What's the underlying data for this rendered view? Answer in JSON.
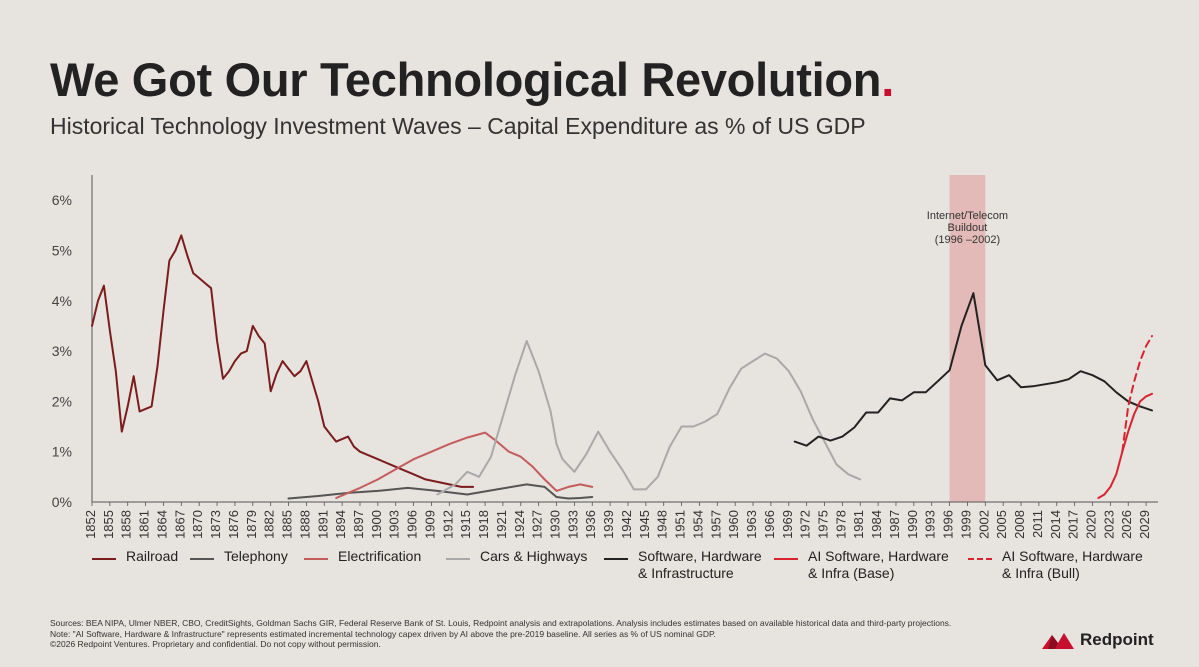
{
  "header": {
    "title": "We Got Our Technological Revolution",
    "title_dot": ".",
    "subtitle": "Historical Technology Investment Waves – Capital Expenditure as % of US GDP"
  },
  "colors": {
    "accent": "#c8102e",
    "railroad": "#7b1c1c",
    "telephony": "#555555",
    "electrification": "#c45c5c",
    "cars": "#a9a9a9",
    "software": "#222222",
    "ai": "#d7242f",
    "shade": "#e2b3b0"
  },
  "chart_data": {
    "type": "line",
    "title": "Historical Technology Investment Waves – Capital Expenditure as % of US GDP",
    "xlabel": "",
    "ylabel": "",
    "xlim": [
      1852,
      2031
    ],
    "ylim": [
      0,
      6.5
    ],
    "y_ticks": [
      {
        "value": 0,
        "label": "0%"
      },
      {
        "value": 1,
        "label": "1%"
      },
      {
        "value": 2,
        "label": "2%"
      },
      {
        "value": 3,
        "label": "3%"
      },
      {
        "value": 4,
        "label": "4%"
      },
      {
        "value": 5,
        "label": "5%"
      },
      {
        "value": 6,
        "label": "6%"
      }
    ],
    "x_ticks": [
      1852,
      1855,
      1858,
      1861,
      1864,
      1867,
      1870,
      1873,
      1876,
      1879,
      1882,
      1885,
      1888,
      1891,
      1894,
      1897,
      1900,
      1903,
      1906,
      1909,
      1912,
      1915,
      1918,
      1921,
      1924,
      1927,
      1930,
      1933,
      1936,
      1939,
      1942,
      1945,
      1948,
      1951,
      1954,
      1957,
      1960,
      1963,
      1966,
      1969,
      1972,
      1975,
      1978,
      1981,
      1984,
      1987,
      1990,
      1993,
      1996,
      1999,
      2002,
      2005,
      2008,
      2011,
      2014,
      2017,
      2020,
      2023,
      2026,
      2029
    ],
    "x_tick_labels": [
      "1852",
      "1855",
      "1858",
      "1861",
      "1864",
      "1867",
      "1870",
      "1873",
      "1876",
      "1879",
      "1882",
      "1885",
      "1888",
      "1891",
      "1894",
      "1897",
      "1900",
      "1903",
      "1906",
      "1909",
      "1912",
      "1915",
      "1918",
      "1921",
      "1924",
      "1927",
      "1930",
      "1933",
      "1936",
      "1939",
      "1942",
      "1945",
      "1948",
      "1951",
      "1954",
      "1957",
      "1960",
      "1963",
      "1966",
      "1969",
      "1972",
      "1975",
      "1978",
      "1981",
      "1984",
      "1987",
      "1990",
      "1993",
      "1996",
      "1999",
      "2002",
      "2005",
      "2008",
      "2011",
      "2014",
      "2017",
      "2020",
      "2023",
      "2026",
      "2029"
    ],
    "shaded_region": {
      "from": 1996,
      "to": 2002,
      "label_lines": [
        "Internet/Telecom",
        "Buildout",
        "(1996 –2002)"
      ]
    },
    "series": [
      {
        "name": "Railroad",
        "color": "#7b1c1c",
        "dash": false,
        "x": [
          1852,
          1853,
          1854,
          1855,
          1856,
          1857,
          1858,
          1859,
          1860,
          1861,
          1862,
          1863,
          1864,
          1865,
          1866,
          1867,
          1868,
          1869,
          1870,
          1871,
          1872,
          1873,
          1874,
          1875,
          1876,
          1877,
          1878,
          1879,
          1880,
          1881,
          1882,
          1883,
          1884,
          1885,
          1886,
          1887,
          1888,
          1889,
          1890,
          1891,
          1892,
          1893,
          1894,
          1895,
          1896,
          1897,
          1898,
          1899,
          1900,
          1902,
          1904,
          1906,
          1908,
          1910,
          1912,
          1914,
          1916
        ],
        "y": [
          3.5,
          4.0,
          4.3,
          3.4,
          2.6,
          1.4,
          1.9,
          2.5,
          1.8,
          1.85,
          1.9,
          2.7,
          3.8,
          4.8,
          5.0,
          5.3,
          4.9,
          4.55,
          4.45,
          4.35,
          4.25,
          3.2,
          2.45,
          2.6,
          2.8,
          2.95,
          3.0,
          3.5,
          3.3,
          3.15,
          2.2,
          2.55,
          2.8,
          2.65,
          2.5,
          2.6,
          2.8,
          2.4,
          2.0,
          1.5,
          1.35,
          1.2,
          1.25,
          1.3,
          1.1,
          1.0,
          0.95,
          0.9,
          0.85,
          0.75,
          0.65,
          0.55,
          0.45,
          0.4,
          0.35,
          0.3,
          0.3
        ]
      },
      {
        "name": "Telephony",
        "color": "#555555",
        "dash": false,
        "x": [
          1885,
          1890,
          1895,
          1900,
          1905,
          1910,
          1915,
          1920,
          1925,
          1928,
          1930,
          1932,
          1934,
          1936
        ],
        "y": [
          0.07,
          0.12,
          0.18,
          0.22,
          0.28,
          0.22,
          0.15,
          0.25,
          0.35,
          0.3,
          0.1,
          0.07,
          0.08,
          0.1
        ]
      },
      {
        "name": "Electrification",
        "color": "#c45c5c",
        "dash": false,
        "x": [
          1893,
          1895,
          1897,
          1900,
          1903,
          1906,
          1909,
          1912,
          1915,
          1918,
          1920,
          1922,
          1924,
          1926,
          1928,
          1930,
          1932,
          1934,
          1936
        ],
        "y": [
          0.08,
          0.18,
          0.28,
          0.45,
          0.65,
          0.85,
          1.0,
          1.15,
          1.28,
          1.38,
          1.2,
          1.0,
          0.9,
          0.7,
          0.45,
          0.22,
          0.3,
          0.35,
          0.3
        ]
      },
      {
        "name": "Cars & Highways",
        "color": "#a9a9a9",
        "dash": false,
        "x": [
          1910,
          1913,
          1915,
          1917,
          1919,
          1921,
          1923,
          1925,
          1927,
          1929,
          1930,
          1931,
          1933,
          1935,
          1937,
          1939,
          1941,
          1943,
          1945,
          1947,
          1949,
          1951,
          1953,
          1955,
          1957,
          1959,
          1961,
          1963,
          1965,
          1967,
          1969,
          1971,
          1973,
          1975,
          1977,
          1979,
          1981
        ],
        "y": [
          0.15,
          0.35,
          0.6,
          0.5,
          0.9,
          1.7,
          2.5,
          3.2,
          2.6,
          1.8,
          1.15,
          0.85,
          0.6,
          0.95,
          1.4,
          1.0,
          0.65,
          0.25,
          0.25,
          0.5,
          1.1,
          1.5,
          1.5,
          1.6,
          1.75,
          2.25,
          2.65,
          2.8,
          2.95,
          2.85,
          2.6,
          2.2,
          1.65,
          1.2,
          0.75,
          0.55,
          0.45
        ]
      },
      {
        "name": "Software, Hardware\n& Infrastructure",
        "color": "#222222",
        "dash": false,
        "x": [
          1970,
          1972,
          1974,
          1976,
          1978,
          1980,
          1982,
          1984,
          1986,
          1988,
          1990,
          1992,
          1994,
          1996,
          1998,
          2000,
          2002,
          2004,
          2006,
          2008,
          2010,
          2012,
          2014,
          2016,
          2018,
          2020,
          2022,
          2024,
          2026,
          2028,
          2030
        ],
        "y": [
          1.2,
          1.12,
          1.3,
          1.22,
          1.3,
          1.48,
          1.78,
          1.78,
          2.06,
          2.02,
          2.18,
          2.18,
          2.4,
          2.62,
          3.5,
          4.15,
          2.72,
          2.42,
          2.52,
          2.28,
          2.3,
          2.34,
          2.38,
          2.44,
          2.6,
          2.52,
          2.4,
          2.18,
          2.0,
          1.9,
          1.82
        ]
      },
      {
        "name": "AI Software, Hardware\n& Infra (Base)",
        "color": "#d7242f",
        "dash": false,
        "x": [
          2021,
          2022,
          2023,
          2024,
          2025,
          2026,
          2027,
          2028,
          2029,
          2030
        ],
        "y": [
          0.08,
          0.15,
          0.3,
          0.55,
          1.0,
          1.4,
          1.75,
          2.0,
          2.1,
          2.15
        ]
      },
      {
        "name": "AI Software, Hardware\n& Infra (Bull)",
        "color": "#d7242f",
        "dash": true,
        "x": [
          2025,
          2026,
          2027,
          2028,
          2029,
          2030
        ],
        "y": [
          1.0,
          1.9,
          2.4,
          2.8,
          3.1,
          3.3
        ]
      }
    ]
  },
  "footnotes": {
    "sources": "Sources: BEA NIPA, Ulmer NBER, CBO, CreditSights, Goldman Sachs GIR, Federal Reserve Bank of St. Louis, Redpoint analysis and extrapolations. Analysis includes estimates based on available historical data and third-party projections.",
    "note": "Note: \"AI Software, Hardware & Infrastructure\" represents estimated incremental technology capex driven by AI above the pre-2019 baseline. All series as % of US nominal GDP.",
    "copyright": "©2026 Redpoint Ventures. Proprietary and confidential. Do not copy without permission."
  },
  "logo": {
    "name": "Redpoint",
    "icon": "mountain-logo-icon"
  }
}
